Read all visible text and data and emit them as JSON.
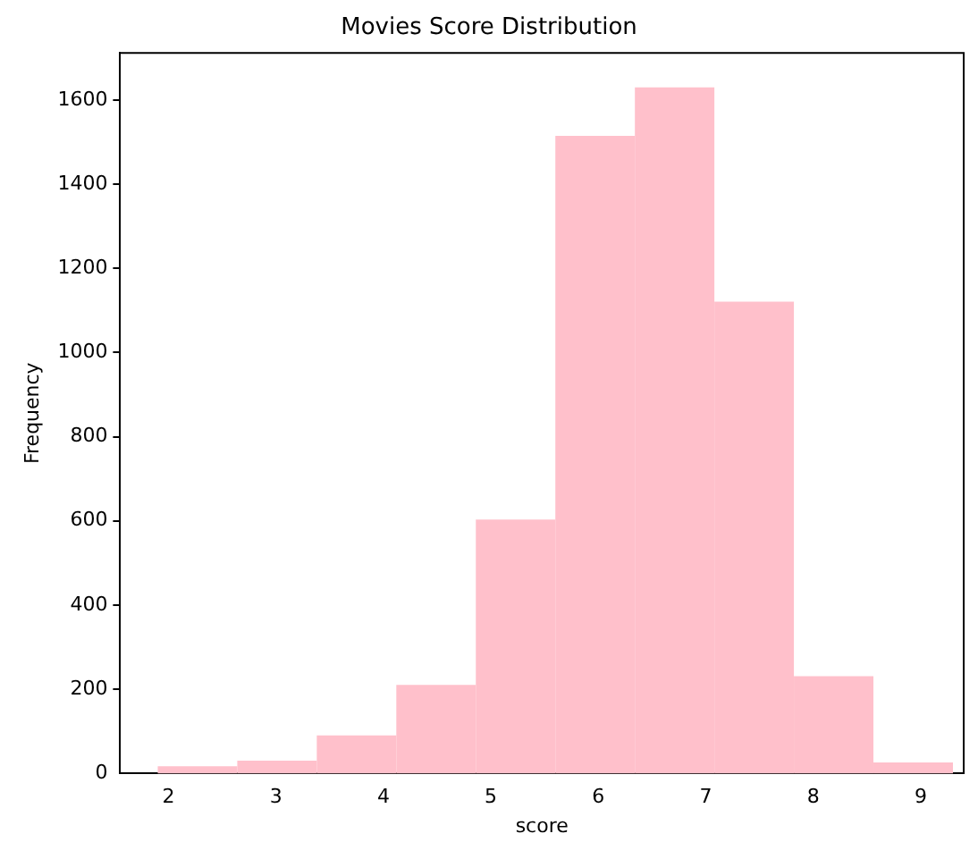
{
  "chart_data": {
    "type": "histogram",
    "title": "Movies Score Distribution",
    "xlabel": "score",
    "ylabel": "Frequency",
    "bins": [
      1.9,
      2.64,
      3.38,
      4.12,
      4.86,
      5.6,
      6.34,
      7.08,
      7.82,
      8.56,
      9.3
    ],
    "values": [
      17,
      30,
      90,
      210,
      603,
      1515,
      1630,
      1121,
      231,
      26
    ],
    "color": "#ffc0cb",
    "xlim": [
      1.55,
      9.4
    ],
    "xticks": [
      2,
      3,
      4,
      5,
      6,
      7,
      8,
      9
    ],
    "ylim": [
      0,
      1712
    ],
    "yticks": [
      0,
      200,
      400,
      600,
      800,
      1000,
      1200,
      1400,
      1600
    ],
    "grid": false,
    "legend": false
  }
}
